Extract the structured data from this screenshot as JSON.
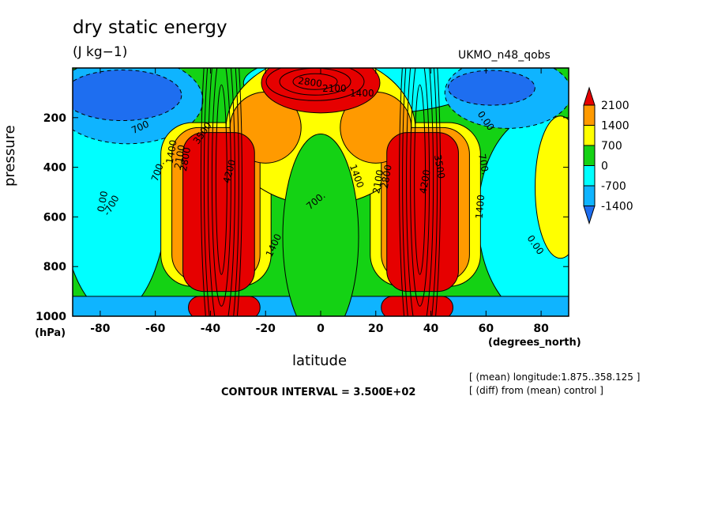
{
  "chart_data": {
    "type": "heatmap",
    "title": "dry static energy",
    "units": "(J kg−1)",
    "model_label": "UKMO_n48_qobs",
    "ylabel": "pressure",
    "ylabel_units": "(hPa)",
    "xlabel": "latitude",
    "xlabel_units": "(degrees_north)",
    "contour_interval_text": "CONTOUR INTERVAL = 3.500E+02",
    "notes": [
      "[ (mean) longitude:1.875..358.125 ]",
      "[ (diff) from (mean) control ]"
    ],
    "xlim": [
      -90,
      90
    ],
    "ylim": [
      1000,
      0
    ],
    "x_ticks": [
      -80,
      -60,
      -40,
      -20,
      0,
      20,
      40,
      60,
      80
    ],
    "y_ticks": [
      200,
      400,
      600,
      800,
      1000
    ],
    "contour_levels": [
      -1400,
      -700,
      0,
      700,
      1400,
      2100
    ],
    "colorbar_labels": [
      "2100",
      "1400",
      "700",
      "0",
      "-700",
      "-1400"
    ],
    "colors": {
      "below_-1400": "#1e6ef0",
      "-1400_-700": "#0fb4ff",
      "-700_0": "#00ffff",
      "0_700": "#14d214",
      "700_1400": "#ffff00",
      "1400_2100": "#ff9a00",
      "above_2100": "#e60000"
    },
    "contour_labels": [
      "700",
      "1400",
      "2100",
      "2800",
      "3500",
      "4200",
      "700.",
      "1400",
      "2100",
      "2800",
      "0.00"
    ],
    "contour_label_texts": {
      "left": [
        "700",
        "0.00",
        "700.",
        "1400",
        "2100",
        "2800",
        "3500",
        "4200",
        "-700"
      ],
      "center": [
        "2800",
        "2100",
        "1400",
        "700.",
        "1400",
        "1400"
      ],
      "right": [
        "2100",
        "2800",
        "3500",
        "4200",
        "700.",
        "1400",
        "0.00",
        "0.00"
      ]
    }
  }
}
